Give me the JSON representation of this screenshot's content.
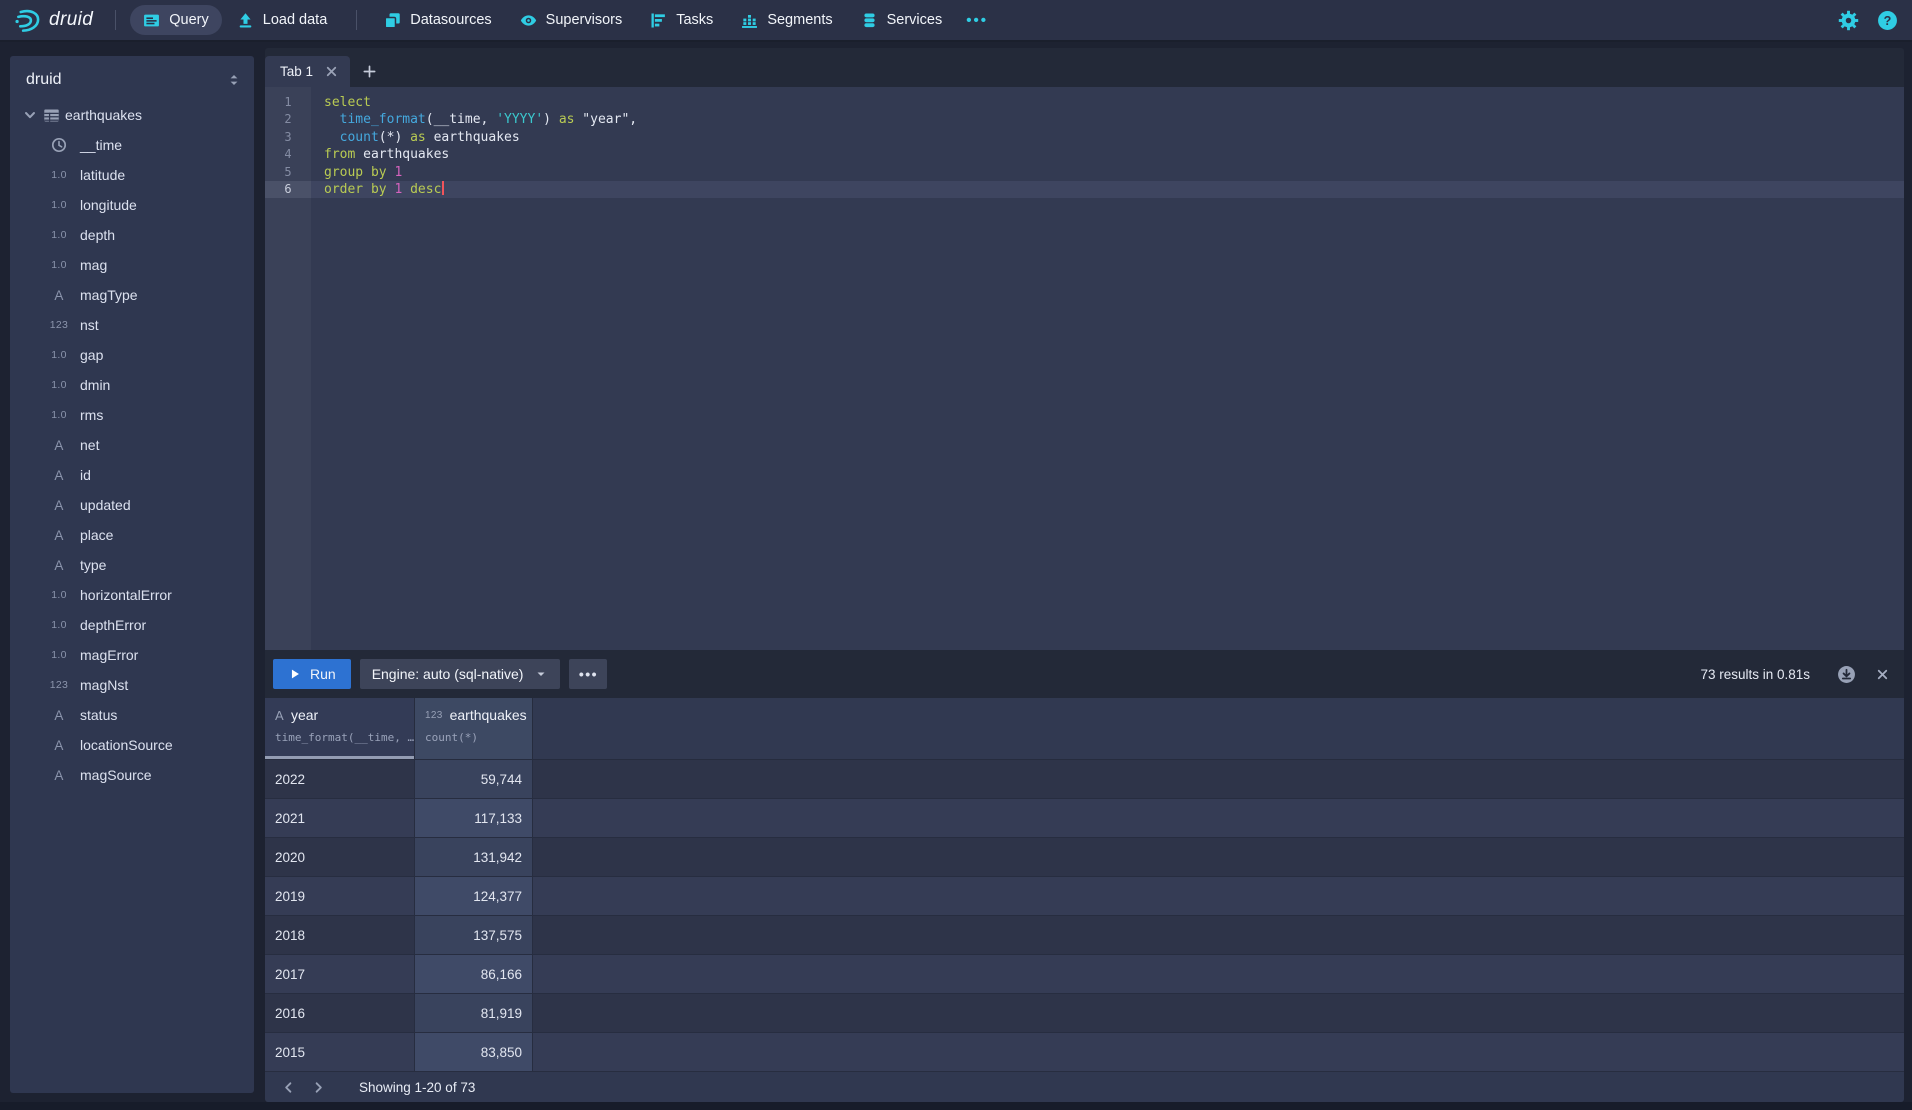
{
  "nav": {
    "brand": "druid",
    "group1": [
      {
        "id": "query",
        "label": "Query",
        "icon": "query-icon",
        "active": true
      },
      {
        "id": "load-data",
        "label": "Load data",
        "icon": "load-data-icon",
        "active": false
      }
    ],
    "group2": [
      {
        "id": "datasources",
        "label": "Datasources",
        "icon": "datasources-icon",
        "active": false
      },
      {
        "id": "supervisors",
        "label": "Supervisors",
        "icon": "supervisors-icon",
        "active": false
      },
      {
        "id": "tasks",
        "label": "Tasks",
        "icon": "tasks-icon",
        "active": false
      },
      {
        "id": "segments",
        "label": "Segments",
        "icon": "segments-icon",
        "active": false
      },
      {
        "id": "services",
        "label": "Services",
        "icon": "services-icon",
        "active": false
      }
    ],
    "more_label": "•••"
  },
  "sidebar": {
    "schema_label": "druid",
    "table": {
      "name": "earthquakes"
    },
    "type_glyphs": {
      "float": "1.0",
      "int": "123",
      "string": "A"
    },
    "columns": [
      {
        "name": "__time",
        "type": "time"
      },
      {
        "name": "latitude",
        "type": "float"
      },
      {
        "name": "longitude",
        "type": "float"
      },
      {
        "name": "depth",
        "type": "float"
      },
      {
        "name": "mag",
        "type": "float"
      },
      {
        "name": "magType",
        "type": "string"
      },
      {
        "name": "nst",
        "type": "int"
      },
      {
        "name": "gap",
        "type": "float"
      },
      {
        "name": "dmin",
        "type": "float"
      },
      {
        "name": "rms",
        "type": "float"
      },
      {
        "name": "net",
        "type": "string"
      },
      {
        "name": "id",
        "type": "string"
      },
      {
        "name": "updated",
        "type": "string"
      },
      {
        "name": "place",
        "type": "string"
      },
      {
        "name": "type",
        "type": "string"
      },
      {
        "name": "horizontalError",
        "type": "float"
      },
      {
        "name": "depthError",
        "type": "float"
      },
      {
        "name": "magError",
        "type": "float"
      },
      {
        "name": "magNst",
        "type": "int"
      },
      {
        "name": "status",
        "type": "string"
      },
      {
        "name": "locationSource",
        "type": "string"
      },
      {
        "name": "magSource",
        "type": "string"
      }
    ]
  },
  "editor": {
    "tab_label": "Tab 1",
    "lines": [
      {
        "num": 1,
        "active": false,
        "cursor": false,
        "tokens": [
          {
            "t": "select",
            "c": "kw"
          }
        ]
      },
      {
        "num": 2,
        "active": false,
        "cursor": false,
        "tokens": [
          {
            "t": "  ",
            "c": "pl"
          },
          {
            "t": "time_format",
            "c": "fn"
          },
          {
            "t": "(__time, ",
            "c": "pl"
          },
          {
            "t": "'YYYY'",
            "c": "str"
          },
          {
            "t": ") ",
            "c": "pl"
          },
          {
            "t": "as",
            "c": "kw"
          },
          {
            "t": " \"year\",",
            "c": "pl"
          }
        ]
      },
      {
        "num": 3,
        "active": false,
        "cursor": false,
        "tokens": [
          {
            "t": "  ",
            "c": "pl"
          },
          {
            "t": "count",
            "c": "fn"
          },
          {
            "t": "(*) ",
            "c": "pl"
          },
          {
            "t": "as",
            "c": "kw"
          },
          {
            "t": " earthquakes",
            "c": "pl"
          }
        ]
      },
      {
        "num": 4,
        "active": false,
        "cursor": false,
        "tokens": [
          {
            "t": "from",
            "c": "kw"
          },
          {
            "t": " earthquakes",
            "c": "pl"
          }
        ]
      },
      {
        "num": 5,
        "active": false,
        "cursor": false,
        "tokens": [
          {
            "t": "group by",
            "c": "kw"
          },
          {
            "t": " ",
            "c": "pl"
          },
          {
            "t": "1",
            "c": "num"
          }
        ]
      },
      {
        "num": 6,
        "active": true,
        "cursor": true,
        "tokens": [
          {
            "t": "order by",
            "c": "kw"
          },
          {
            "t": " ",
            "c": "pl"
          },
          {
            "t": "1",
            "c": "num"
          },
          {
            "t": " ",
            "c": "pl"
          },
          {
            "t": "desc",
            "c": "kw"
          }
        ]
      }
    ]
  },
  "runbar": {
    "run_label": "Run",
    "engine_label": "Engine: auto (sql-native)",
    "more_label": "•••",
    "summary": "73 results in 0.81s"
  },
  "results": {
    "columns": [
      {
        "name": "year",
        "type_glyph": "A",
        "expr": "time_format(__time, …",
        "sorted": true
      },
      {
        "name": "earthquakes",
        "type_glyph": "123",
        "expr": "count(*)",
        "sorted": false
      }
    ],
    "rows": [
      [
        "2022",
        "59,744"
      ],
      [
        "2021",
        "117,133"
      ],
      [
        "2020",
        "131,942"
      ],
      [
        "2019",
        "124,377"
      ],
      [
        "2018",
        "137,575"
      ],
      [
        "2017",
        "86,166"
      ],
      [
        "2016",
        "81,919"
      ],
      [
        "2015",
        "83,850"
      ]
    ],
    "pagination": "Showing 1-20 of 73"
  },
  "colors": {
    "accent_cyan": "#2FCDE4",
    "run_button_blue": "#2D72D2",
    "sql_keyword": "#B9CB53",
    "sql_function": "#45A9DE",
    "sql_string": "#3BC8CE",
    "sql_number": "#D563BE",
    "cursor_red": "#F2545B"
  }
}
